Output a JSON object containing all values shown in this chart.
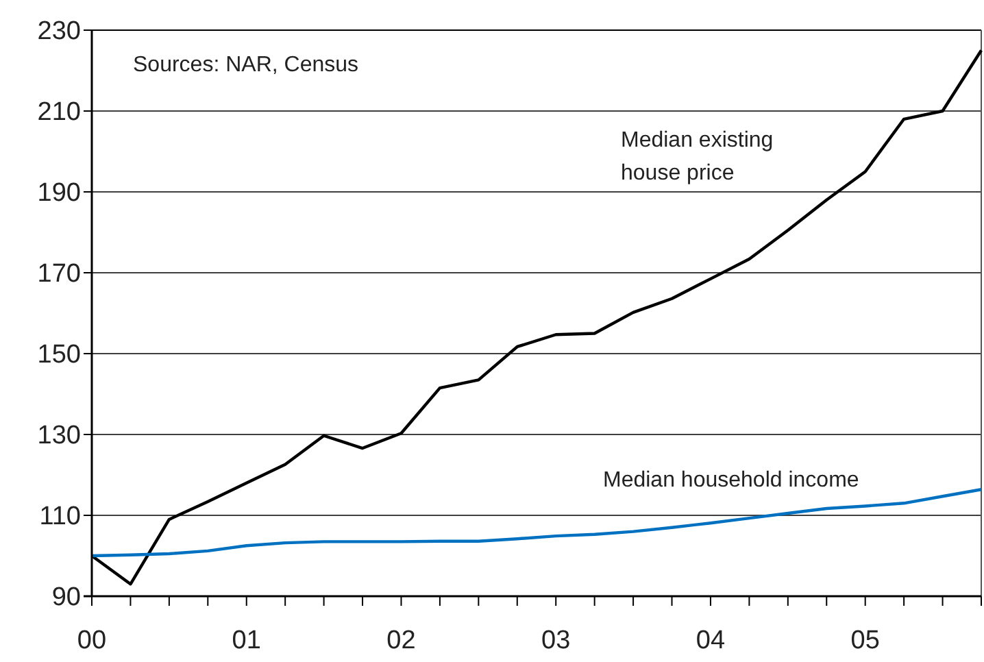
{
  "chart_data": {
    "type": "line",
    "x": [
      2000,
      2000.25,
      2000.5,
      2000.75,
      2001,
      2001.25,
      2001.5,
      2001.75,
      2002,
      2002.25,
      2002.5,
      2002.75,
      2003,
      2003.25,
      2003.5,
      2003.75,
      2004,
      2004.25,
      2004.5,
      2004.75,
      2005,
      2005.25,
      2005.5,
      2005.75
    ],
    "series": [
      {
        "name": "Median existing house price",
        "color": "#000000",
        "values": [
          100,
          93,
          109,
          113.4,
          118,
          122.6,
          129.7,
          126.6,
          130.3,
          141.5,
          143.5,
          151.7,
          154.7,
          155,
          160.2,
          163.6,
          168.5,
          173.4,
          180.5,
          188,
          195,
          208,
          210,
          225
        ]
      },
      {
        "name": "Median household income",
        "color": "#0070c0",
        "values": [
          100,
          100.2,
          100.5,
          101.2,
          102.5,
          103.2,
          103.5,
          103.5,
          103.5,
          103.6,
          103.6,
          104.2,
          104.9,
          105.3,
          106,
          107,
          108.1,
          109.3,
          110.5,
          111.7,
          112.3,
          113,
          114.7,
          116.4
        ]
      }
    ],
    "xlim": [
      2000,
      2005.75
    ],
    "xticks": [
      {
        "value": 2000,
        "label": "00"
      },
      {
        "value": 2000.25,
        "label": null
      },
      {
        "value": 2000.5,
        "label": null
      },
      {
        "value": 2000.75,
        "label": null
      },
      {
        "value": 2001,
        "label": "01"
      },
      {
        "value": 2001.25,
        "label": null
      },
      {
        "value": 2001.5,
        "label": null
      },
      {
        "value": 2001.75,
        "label": null
      },
      {
        "value": 2002,
        "label": "02"
      },
      {
        "value": 2002.25,
        "label": null
      },
      {
        "value": 2002.5,
        "label": null
      },
      {
        "value": 2002.75,
        "label": null
      },
      {
        "value": 2003,
        "label": "03"
      },
      {
        "value": 2003.25,
        "label": null
      },
      {
        "value": 2003.5,
        "label": null
      },
      {
        "value": 2003.75,
        "label": null
      },
      {
        "value": 2004,
        "label": "04"
      },
      {
        "value": 2004.25,
        "label": null
      },
      {
        "value": 2004.5,
        "label": null
      },
      {
        "value": 2004.75,
        "label": null
      },
      {
        "value": 2005,
        "label": "05"
      },
      {
        "value": 2005.25,
        "label": null
      },
      {
        "value": 2005.5,
        "label": null
      },
      {
        "value": 2005.75,
        "label": null
      }
    ],
    "ylim": [
      90,
      230
    ],
    "yticks": [
      90,
      110,
      130,
      150,
      170,
      190,
      210,
      230
    ],
    "grid": "y",
    "line_style": "solid",
    "annotations": [
      "Sources: NAR, Census"
    ]
  }
}
